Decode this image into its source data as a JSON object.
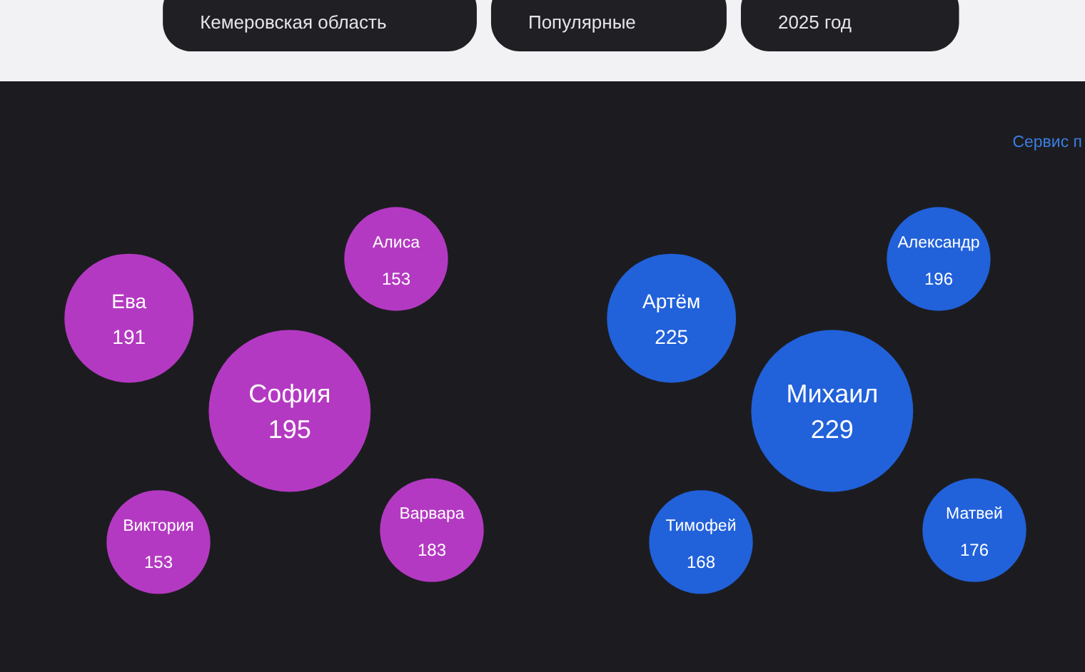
{
  "chart_data": [
    {
      "type": "other",
      "annotations": [
        "Кемеровская область",
        "Популярные",
        "2025 год"
      ]
    },
    {
      "type": "other",
      "categories": [
        "София",
        "Ева",
        "Алиса",
        "Варвара",
        "Виктория"
      ],
      "series": [
        {
          "color": "#c13cd0",
          "values": [
            195,
            191,
            153,
            183,
            153
          ]
        }
      ],
      "data_labels": true
    },
    {
      "type": "other",
      "categories": [
        "Михаил",
        "Артём",
        "Александр",
        "Матвей",
        "Тимофей"
      ],
      "series": [
        {
          "color": "#2267ea",
          "values": [
            229,
            225,
            196,
            176,
            168
          ]
        }
      ],
      "data_labels": true,
      "annotations": [
        "Сервис п"
      ]
    }
  ]
}
